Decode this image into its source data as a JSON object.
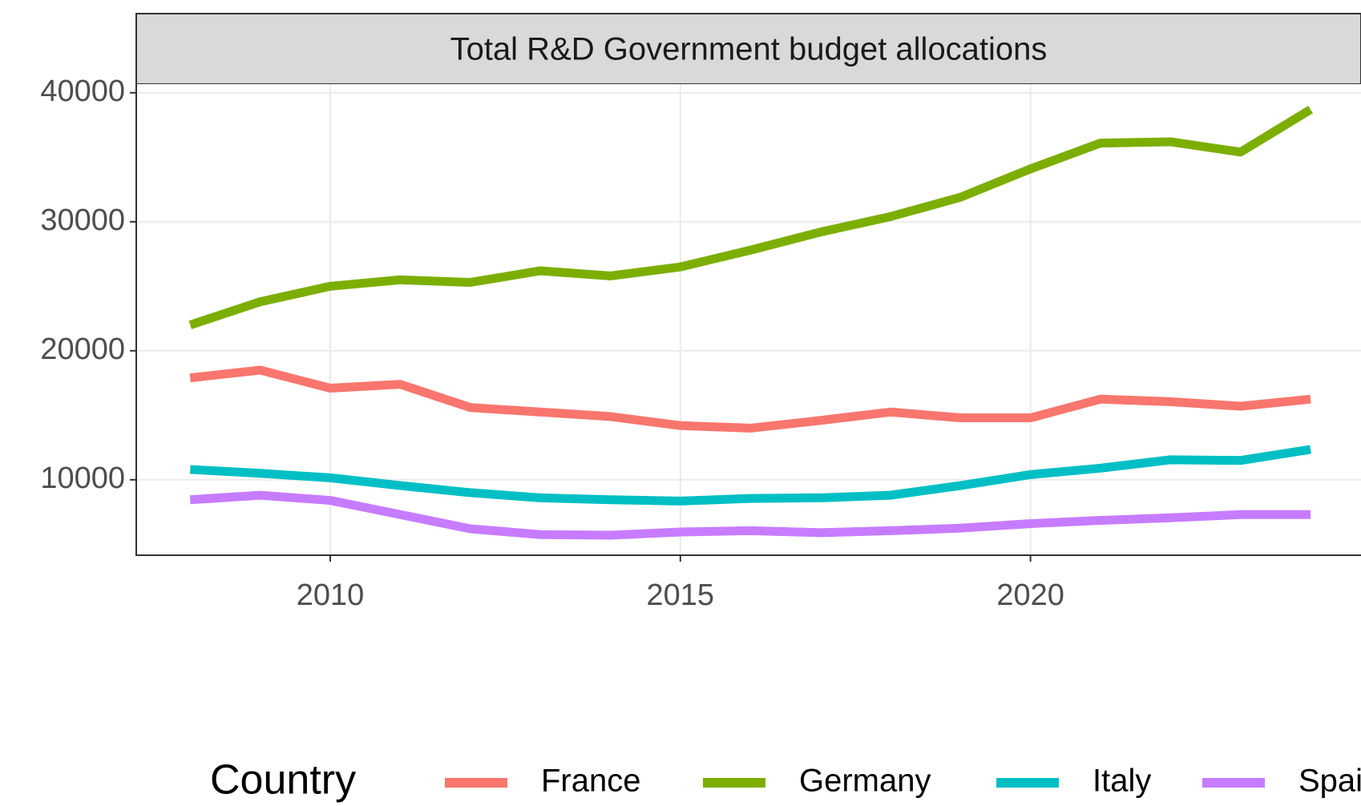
{
  "chart_data": {
    "type": "line",
    "title": "Total R&D Government budget allocations",
    "legend_title": "Country",
    "x": [
      2008,
      2009,
      2010,
      2011,
      2012,
      2013,
      2014,
      2015,
      2016,
      2017,
      2018,
      2019,
      2020,
      2021,
      2022,
      2023,
      2024
    ],
    "series": [
      {
        "name": "France",
        "color": "#f8766d",
        "values": [
          17900,
          18500,
          17100,
          17400,
          15600,
          15250,
          14900,
          14200,
          14000,
          14600,
          15250,
          14800,
          14800,
          16250,
          16050,
          15700,
          16250
        ]
      },
      {
        "name": "Germany",
        "color": "#7cae00",
        "values": [
          22000,
          23800,
          25000,
          25500,
          25300,
          26200,
          25800,
          26500,
          27800,
          29200,
          30400,
          31900,
          34100,
          36100,
          36200,
          35400,
          38700
        ]
      },
      {
        "name": "Italy",
        "color": "#00bfc4",
        "values": [
          10800,
          10500,
          10150,
          9550,
          9000,
          8600,
          8450,
          8350,
          8550,
          8600,
          8800,
          9550,
          10400,
          10900,
          11550,
          11500,
          12350
        ]
      },
      {
        "name": "Spain",
        "color": "#c77cff",
        "values": [
          8450,
          8800,
          8400,
          7300,
          6200,
          5750,
          5700,
          5950,
          6050,
          5900,
          6050,
          6250,
          6600,
          6850,
          7050,
          7300,
          7300
        ]
      }
    ],
    "xlim": [
      2007.23,
      2024.72
    ],
    "xticks": [
      2010,
      2015,
      2020
    ],
    "ylim": [
      4150,
      40670
    ],
    "yticks": [
      10000,
      20000,
      30000,
      40000
    ],
    "grid": true,
    "legend_position": "bottom"
  }
}
